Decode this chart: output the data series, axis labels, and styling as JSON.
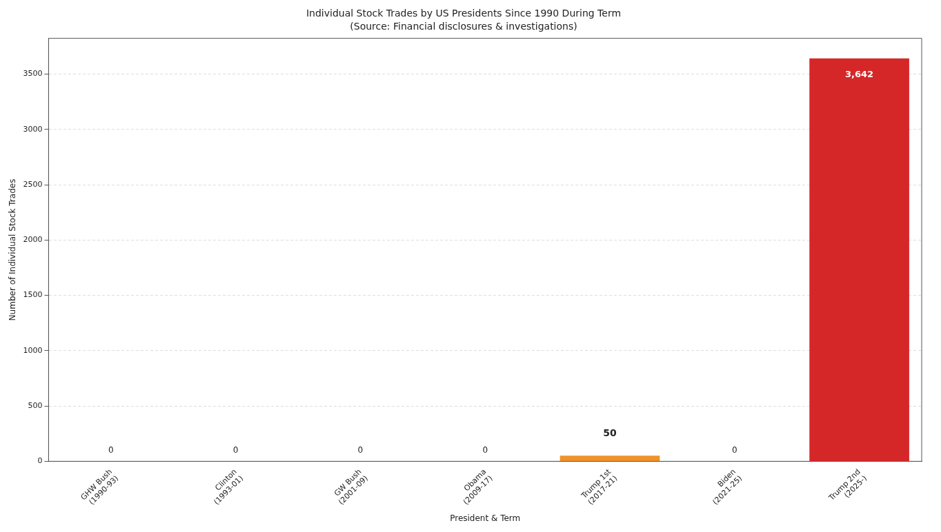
{
  "chart_data": {
    "type": "bar",
    "title": "Individual Stock Trades by US Presidents Since 1990 During Term",
    "subtitle": "(Source: Financial disclosures & investigations)",
    "xlabel": "President & Term",
    "ylabel": "Number of Individual Stock Trades",
    "categories": [
      "GHW Bush\n(1990-93)",
      "Clinton\n(1993-01)",
      "GW Bush\n(2001-09)",
      "Obama\n(2009-17)",
      "Trump 1st\n(2017-21)",
      "Biden\n(2021-25)",
      "Trump 2nd\n(2025-)"
    ],
    "values": [
      0,
      0,
      0,
      0,
      50,
      0,
      3642
    ],
    "colors": [
      "#9e9e9e",
      "#9e9e9e",
      "#9e9e9e",
      "#9e9e9e",
      "#f0922b",
      "#9e9e9e",
      "#d62728"
    ],
    "value_labels": [
      "0",
      "0",
      "0",
      "0",
      "50",
      "0",
      "3,642"
    ],
    "ylim": [
      0,
      3824
    ],
    "yticks": [
      0,
      500,
      1000,
      1500,
      2000,
      2500,
      3000,
      3500
    ],
    "grid": "y"
  }
}
